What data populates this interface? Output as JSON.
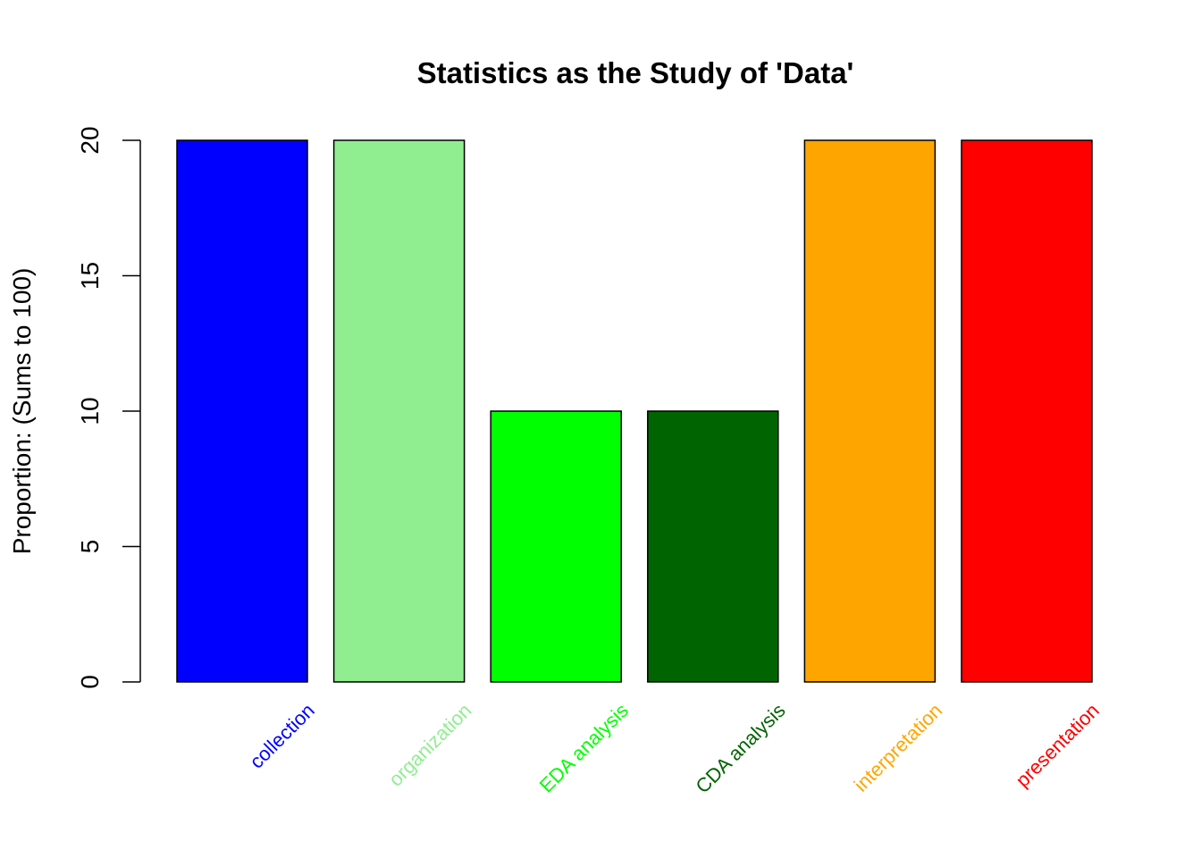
{
  "chart_data": {
    "type": "bar",
    "title": "Statistics as the Study of 'Data'",
    "xlabel": "",
    "ylabel": "Proportion: (Sums to 100)",
    "categories": [
      "collection",
      "organization",
      "EDA analysis",
      "CDA analysis",
      "interpretation",
      "presentation"
    ],
    "values": [
      20,
      20,
      10,
      10,
      20,
      20
    ],
    "colors": [
      "#0000FF",
      "#90EE90",
      "#00FF00",
      "#006400",
      "#FFA500",
      "#FF0000"
    ],
    "ylim": [
      0,
      20
    ],
    "yticks": [
      0,
      5,
      10,
      15,
      20
    ],
    "grid": false,
    "legend": "none"
  }
}
